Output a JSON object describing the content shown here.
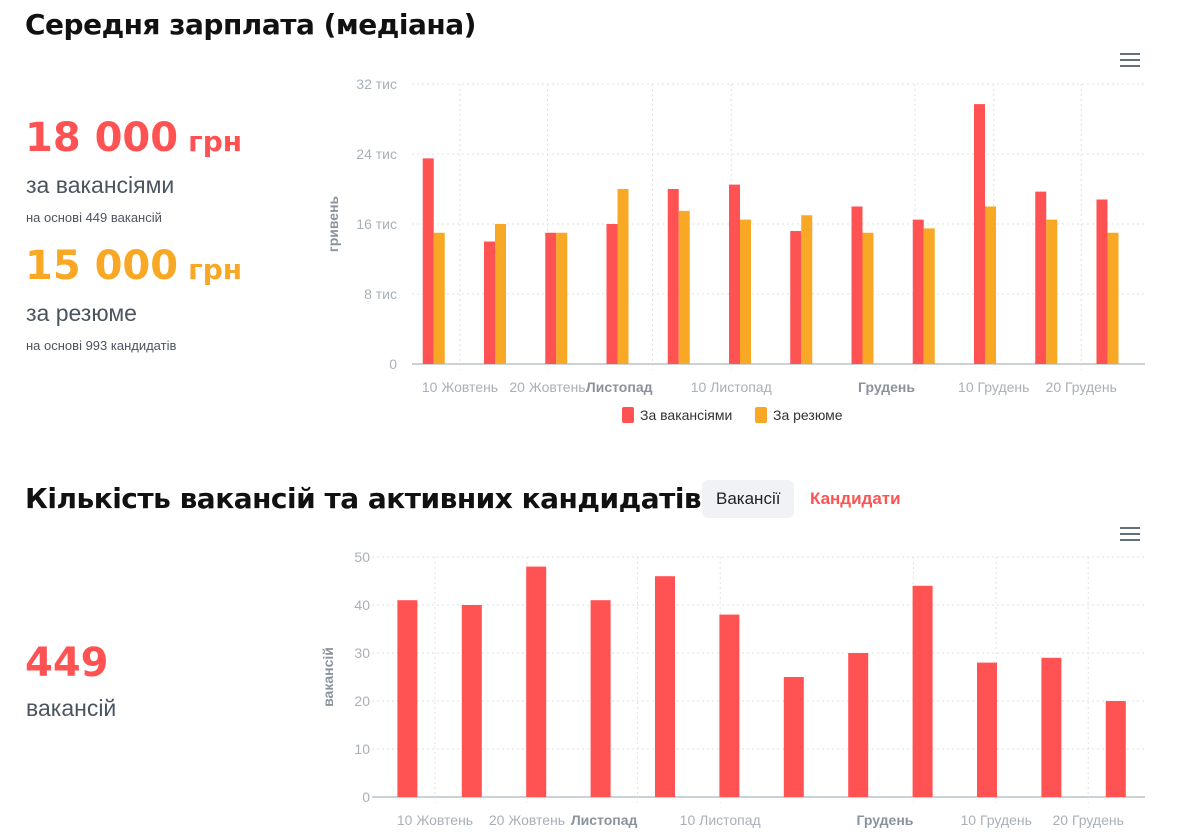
{
  "salary": {
    "title": "Середня зарплата (медіана)",
    "vacancies_value": "18 000",
    "vacancies_unit": "грн",
    "vacancies_label": "за вакансіями",
    "vacancies_basis": "на основі 449 вакансій",
    "resume_value": "15 000",
    "resume_unit": "грн",
    "resume_label": "за резюме",
    "resume_basis": "на основі 993 кандидатів"
  },
  "counts": {
    "title": "Кількість вакансій та активних кандидатів",
    "tab_vacancies": "Вакансії",
    "tab_candidates": "Кандидати",
    "value": "449",
    "label": "вакансій"
  },
  "colors": {
    "vacancies": "#ff5252",
    "resume": "#f9a825",
    "grid": "#dde1e5"
  },
  "chart_data": [
    {
      "type": "bar",
      "ylabel": "гривень",
      "ylim": [
        0,
        32000
      ],
      "yticks": [
        "0",
        "8 тис",
        "16 тис",
        "24 тис",
        "32 тис"
      ],
      "xticks": [
        {
          "label": "10 Жовтень",
          "date": "10-10",
          "bold": false
        },
        {
          "label": "20 Жовтень",
          "date": "10-20",
          "bold": false
        },
        {
          "label": "Листопад",
          "date": "11-01",
          "bold": true
        },
        {
          "label": "10 Листопад",
          "date": "11-10",
          "bold": false
        },
        {
          "label": "Грудень",
          "date": "12-01",
          "bold": true
        },
        {
          "label": "10 Грудень",
          "date": "12-10",
          "bold": false
        },
        {
          "label": "20 Грудень",
          "date": "12-20",
          "bold": false
        }
      ],
      "x": [
        "10-07",
        "10-14",
        "10-21",
        "10-28",
        "11-04",
        "11-11",
        "11-18",
        "11-25",
        "12-02",
        "12-09",
        "12-16",
        "12-23"
      ],
      "series": [
        {
          "name": "За вакансіями",
          "values": [
            23500,
            14000,
            15000,
            16000,
            20000,
            20500,
            15200,
            18000,
            16500,
            29700,
            19700,
            18800
          ]
        },
        {
          "name": "За резюме",
          "values": [
            15000,
            16000,
            15000,
            20000,
            17500,
            16500,
            17000,
            15000,
            15500,
            18000,
            16500,
            15000
          ]
        }
      ],
      "legend": "bottom",
      "grid": true
    },
    {
      "type": "bar",
      "ylabel": "вакансій",
      "ylim": [
        0,
        50
      ],
      "yticks": [
        "0",
        "10",
        "20",
        "30",
        "40",
        "50"
      ],
      "xticks": [
        {
          "label": "10 Жовтень",
          "date": "10-10",
          "bold": false
        },
        {
          "label": "20 Жовтень",
          "date": "10-20",
          "bold": false
        },
        {
          "label": "Листопад",
          "date": "11-01",
          "bold": true
        },
        {
          "label": "10 Листопад",
          "date": "11-10",
          "bold": false
        },
        {
          "label": "Грудень",
          "date": "12-01",
          "bold": true
        },
        {
          "label": "10 Грудень",
          "date": "12-10",
          "bold": false
        },
        {
          "label": "20 Грудень",
          "date": "12-20",
          "bold": false
        }
      ],
      "x": [
        "10-07",
        "10-14",
        "10-21",
        "10-28",
        "11-04",
        "11-11",
        "11-18",
        "11-25",
        "12-02",
        "12-09",
        "12-16",
        "12-23"
      ],
      "values": [
        41,
        40,
        48,
        41,
        46,
        38,
        25,
        30,
        44,
        28,
        29,
        20
      ],
      "grid": true
    }
  ]
}
